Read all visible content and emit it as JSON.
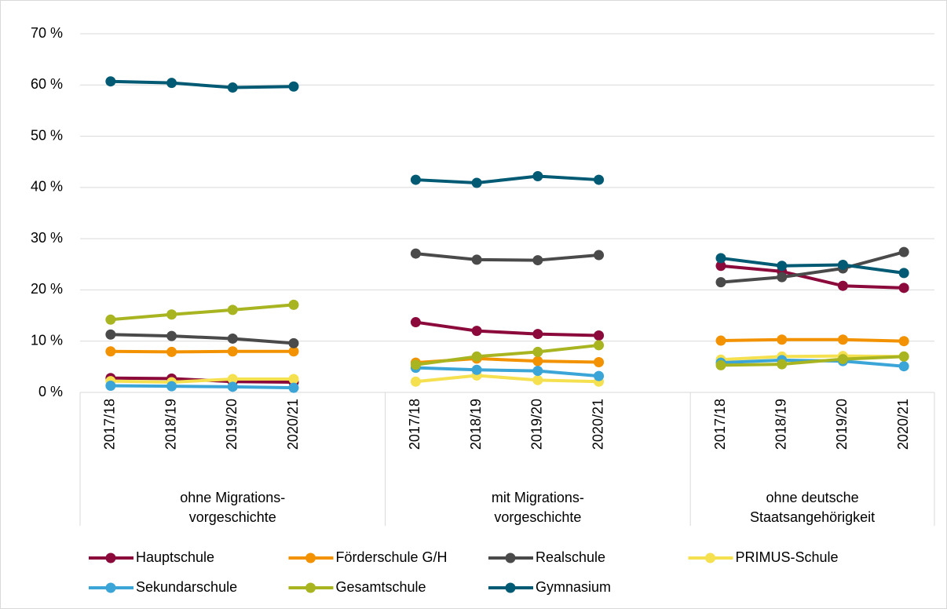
{
  "chart_data": {
    "type": "line",
    "categories": [
      "2017/18",
      "2018/19",
      "2019/20",
      "2020/21",
      null,
      "2017/18",
      "2018/19",
      "2019/20",
      "2020/21",
      null,
      "2017/18",
      "2018/19",
      "2019/20",
      "2020/21"
    ],
    "groups": [
      [
        "ohne Migrations-",
        "vorgeschichte"
      ],
      [
        "mit Migrations-",
        "vorgeschichte"
      ],
      [
        "ohne deutsche",
        "Staatsangehörigkeit"
      ]
    ],
    "ylim": [
      0,
      70
    ],
    "yticks": [
      {
        "value": 0,
        "label": "0 %"
      },
      {
        "value": 10,
        "label": "10 %"
      },
      {
        "value": 20,
        "label": "20 %"
      },
      {
        "value": 30,
        "label": "30 %"
      },
      {
        "value": 40,
        "label": "40 %"
      },
      {
        "value": 50,
        "label": "50 %"
      },
      {
        "value": 60,
        "label": "60 %"
      },
      {
        "value": 70,
        "label": "70 %"
      }
    ],
    "grid": true,
    "legend": "bottom",
    "series": [
      {
        "name": "Hauptschule",
        "color": "#8b0a3b",
        "values": [
          2.8,
          2.7,
          2.1,
          2.0,
          null,
          13.7,
          12.0,
          11.4,
          11.1,
          null,
          24.7,
          23.6,
          20.8,
          20.4
        ]
      },
      {
        "name": "Förderschule G/H",
        "color": "#f39200",
        "values": [
          8.0,
          7.9,
          8.0,
          8.0,
          null,
          5.8,
          6.6,
          6.1,
          5.9,
          null,
          10.1,
          10.3,
          10.3,
          10.0
        ]
      },
      {
        "name": "Realschule",
        "color": "#4a4a4a",
        "values": [
          11.3,
          11.0,
          10.5,
          9.6,
          null,
          27.1,
          25.9,
          25.8,
          26.8,
          null,
          21.5,
          22.5,
          24.2,
          27.4
        ]
      },
      {
        "name": "PRIMUS-Schule",
        "color": "#f5e050",
        "values": [
          2.2,
          2.0,
          2.6,
          2.6,
          null,
          2.1,
          3.3,
          2.4,
          2.1,
          null,
          6.4,
          7.0,
          7.1,
          7.0
        ]
      },
      {
        "name": "Sekundarschule",
        "color": "#3ba5d8",
        "values": [
          1.3,
          1.2,
          1.1,
          0.9,
          null,
          4.8,
          4.4,
          4.2,
          3.2,
          null,
          5.8,
          6.3,
          6.1,
          5.1
        ]
      },
      {
        "name": "Gesamtschule",
        "color": "#a8b520",
        "values": [
          14.2,
          15.2,
          16.1,
          17.1,
          null,
          5.4,
          7.0,
          7.9,
          9.2,
          null,
          5.3,
          5.5,
          6.5,
          7.0
        ]
      },
      {
        "name": "Gymnasium",
        "color": "#005a73",
        "values": [
          60.7,
          60.4,
          59.5,
          59.7,
          null,
          41.5,
          40.9,
          42.2,
          41.5,
          null,
          26.2,
          24.7,
          24.9,
          23.3
        ]
      }
    ]
  }
}
